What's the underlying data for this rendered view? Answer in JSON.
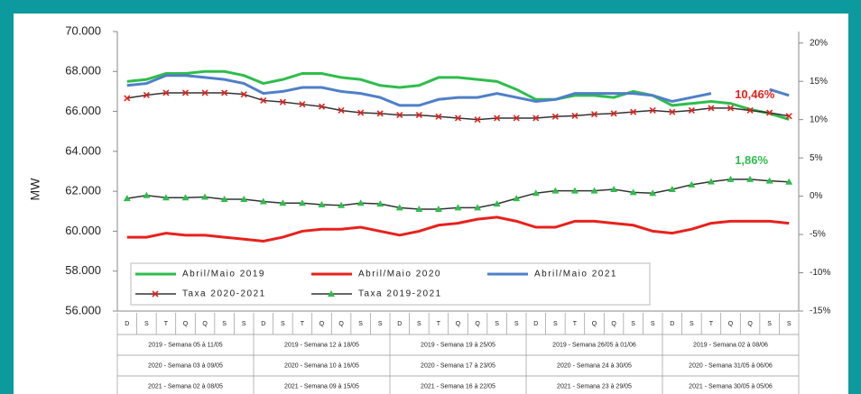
{
  "chart_data": {
    "type": "line",
    "y_label": "MW",
    "categories": [
      "D",
      "S",
      "T",
      "Q",
      "Q",
      "S",
      "S",
      "D",
      "S",
      "T",
      "Q",
      "Q",
      "S",
      "S",
      "D",
      "S",
      "T",
      "Q",
      "Q",
      "S",
      "S",
      "D",
      "S",
      "T",
      "Q",
      "Q",
      "S",
      "S",
      "D",
      "S",
      "T",
      "Q",
      "Q",
      "S",
      "S"
    ],
    "week_rows": [
      [
        "2019 - Semana 05 à 11/05",
        "2019 - Semana 12 à 18/05",
        "2019 - Semana 19 à 25/05",
        "2019 - Semana 26/05 à 01/06",
        "2019 - Semana 02 à 08/06"
      ],
      [
        "2020 - Semana 03 à 09/05",
        "2020 - Semana 10 à 16/05",
        "2020 - Semana 17 à 23/05",
        "2020 - Semana 24 à 30/05",
        "2020 - Semana 31/05 à 06/06"
      ],
      [
        "2021 - Semana 02 à 08/05",
        "2021 - Semana 09 à 15/05",
        "2021 - Semana 16 à 22/05",
        "2021 - Semana 23 à 29/05",
        "2021 - Semana 30/05 à 05/06"
      ]
    ],
    "ylim": [
      56000,
      70000
    ],
    "yticks": [
      {
        "value": 56000,
        "label": "56.000"
      },
      {
        "value": 58000,
        "label": "58.000"
      },
      {
        "value": 60000,
        "label": "60.000"
      },
      {
        "value": 62000,
        "label": "62.000"
      },
      {
        "value": 64000,
        "label": "64.000"
      },
      {
        "value": 66000,
        "label": "66.000"
      },
      {
        "value": 68000,
        "label": "68.000"
      },
      {
        "value": 70000,
        "label": "70.000"
      }
    ],
    "y2lim": [
      -15,
      21.5
    ],
    "y2ticks": [
      {
        "value": -15,
        "label": "-15%"
      },
      {
        "value": -10,
        "label": "-10%"
      },
      {
        "value": -5,
        "label": "-5%"
      },
      {
        "value": 0,
        "label": "0%"
      },
      {
        "value": 5,
        "label": "5%"
      },
      {
        "value": 10,
        "label": "10%"
      },
      {
        "value": 15,
        "label": "15%"
      },
      {
        "value": 20,
        "label": "20%"
      }
    ],
    "series": [
      {
        "name": "Abril/Maio 2019",
        "color": "#2ebd4c",
        "values": [
          67500,
          67600,
          67900,
          67900,
          68000,
          68000,
          67800,
          67400,
          67600,
          67900,
          67900,
          67700,
          67600,
          67300,
          67200,
          67300,
          67700,
          67700,
          67600,
          67500,
          67100,
          66600,
          66600,
          66800,
          66800,
          66700,
          67000,
          66800,
          66300,
          66400,
          66500,
          66400,
          66100,
          65900,
          65600
        ]
      },
      {
        "name": "Abril/Maio 2020",
        "color": "#e8211c",
        "values": [
          59700,
          59700,
          59900,
          59800,
          59800,
          59700,
          59600,
          59500,
          59700,
          60000,
          60100,
          60100,
          60200,
          60000,
          59800,
          60000,
          60300,
          60400,
          60600,
          60700,
          60500,
          60200,
          60200,
          60500,
          60500,
          60400,
          60300,
          60000,
          59900,
          60100,
          60400,
          60500,
          60500,
          60500,
          60400
        ]
      },
      {
        "name": "Abril/Maio 2021",
        "color": "#4f7fc8",
        "values": [
          67300,
          67400,
          67800,
          67800,
          67700,
          67600,
          67400,
          66900,
          67000,
          67200,
          67200,
          67000,
          66900,
          66700,
          66300,
          66300,
          66600,
          66700,
          66700,
          66900,
          66700,
          66500,
          66600,
          66900,
          66900,
          66900,
          66900,
          66800,
          66500,
          66700,
          66900,
          null,
          null,
          67100,
          66800
        ]
      },
      {
        "name": "Taxa 2020-2021",
        "color": "#333333",
        "axis": "y2",
        "marker": "x",
        "marker_color": "#e8211c",
        "values": [
          12.8,
          13.2,
          13.5,
          13.5,
          13.5,
          13.5,
          13.3,
          12.5,
          12.3,
          12.0,
          11.7,
          11.2,
          10.9,
          10.8,
          10.6,
          10.6,
          10.4,
          10.2,
          10.0,
          10.2,
          10.2,
          10.2,
          10.4,
          10.5,
          10.7,
          10.8,
          11.0,
          11.2,
          11.0,
          11.2,
          11.5,
          11.5,
          11.2,
          10.9,
          10.46
        ],
        "value_labels": [
          null,
          null,
          null,
          null,
          null,
          null,
          null,
          null,
          null,
          null,
          null,
          null,
          null,
          null,
          null,
          null,
          null,
          null,
          null,
          null,
          null,
          null,
          null,
          null,
          null,
          null,
          null,
          null,
          null,
          null,
          null,
          null,
          null,
          null,
          "10,46%"
        ]
      },
      {
        "name": "Taxa 2019-2021",
        "color": "#333333",
        "axis": "y2",
        "marker": "triangle",
        "marker_color": "#2ebd4c",
        "values": [
          -0.3,
          0.1,
          -0.2,
          -0.2,
          -0.1,
          -0.4,
          -0.4,
          -0.7,
          -0.9,
          -0.9,
          -1.1,
          -1.2,
          -0.9,
          -1.0,
          -1.5,
          -1.7,
          -1.7,
          -1.5,
          -1.5,
          -1.0,
          -0.3,
          0.4,
          0.7,
          0.7,
          0.7,
          0.9,
          0.5,
          0.4,
          0.9,
          1.5,
          1.9,
          2.2,
          2.2,
          2.0,
          1.86
        ],
        "value_labels": [
          null,
          null,
          null,
          null,
          null,
          null,
          null,
          null,
          null,
          null,
          null,
          null,
          null,
          null,
          null,
          null,
          null,
          null,
          null,
          null,
          null,
          null,
          null,
          null,
          null,
          null,
          null,
          null,
          null,
          null,
          null,
          null,
          null,
          null,
          "1,86%"
        ]
      }
    ]
  }
}
